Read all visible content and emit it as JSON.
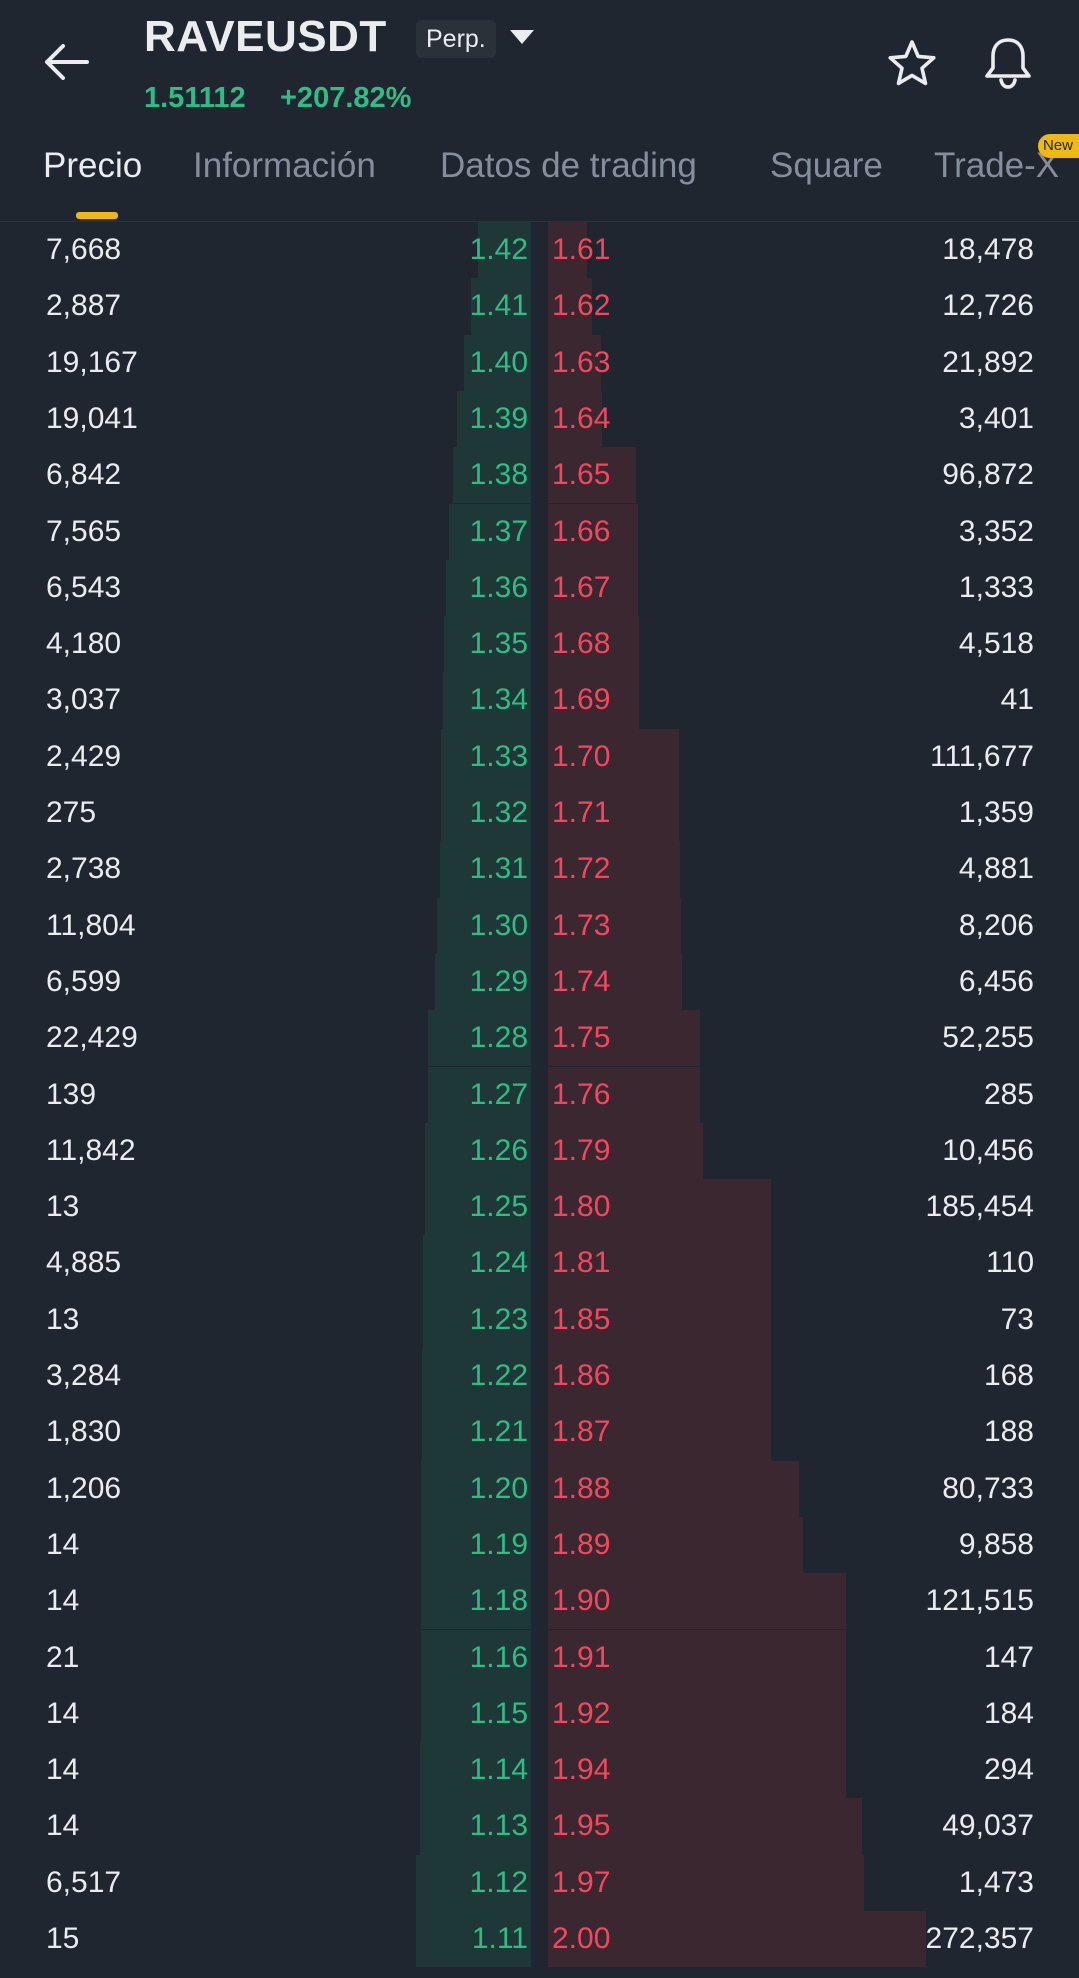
{
  "header": {
    "symbol": "RAVEUSDT",
    "contract_type": "Perp.",
    "last_price": "1.51112",
    "change_pct": "+207.82%",
    "icons": [
      "back-arrow-icon",
      "caret-down-icon",
      "star-icon",
      "bell-icon"
    ]
  },
  "tabs": [
    {
      "label": "Precio",
      "active": true
    },
    {
      "label": "Información",
      "active": false
    },
    {
      "label": "Datos de trading",
      "active": false
    },
    {
      "label": "Square",
      "active": false
    },
    {
      "label": "Trade-X",
      "active": false,
      "badge": "New"
    }
  ],
  "colors": {
    "background": "#1f2630",
    "bid_green": "#2ebd85",
    "ask_red": "#f6465d",
    "bid_depth": "#1e3737",
    "ask_depth": "#3a2730",
    "accent_yellow": "#f0b90b"
  },
  "order_book": {
    "rows": [
      {
        "bid_qty": "7,668",
        "bid_price": "1.42",
        "ask_price": "1.61",
        "ask_qty": "18,478",
        "bid_depth": 0.049,
        "ask_depth": 0.036
      },
      {
        "bid_qty": "2,887",
        "bid_price": "1.41",
        "ask_price": "1.62",
        "ask_qty": "12,726",
        "bid_depth": 0.056,
        "ask_depth": 0.041
      },
      {
        "bid_qty": "19,167",
        "bid_price": "1.40",
        "ask_price": "1.63",
        "ask_qty": "21,892",
        "bid_depth": 0.062,
        "ask_depth": 0.049
      },
      {
        "bid_qty": "19,041",
        "bid_price": "1.39",
        "ask_price": "1.64",
        "ask_qty": "3,401",
        "bid_depth": 0.069,
        "ask_depth": 0.05
      },
      {
        "bid_qty": "6,842",
        "bid_price": "1.38",
        "ask_price": "1.65",
        "ask_qty": "96,872",
        "bid_depth": 0.072,
        "ask_depth": 0.082
      },
      {
        "bid_qty": "7,565",
        "bid_price": "1.37",
        "ask_price": "1.66",
        "ask_qty": "3,352",
        "bid_depth": 0.076,
        "ask_depth": 0.083
      },
      {
        "bid_qty": "6,543",
        "bid_price": "1.36",
        "ask_price": "1.67",
        "ask_qty": "1,333",
        "bid_depth": 0.079,
        "ask_depth": 0.083
      },
      {
        "bid_qty": "4,180",
        "bid_price": "1.35",
        "ask_price": "1.68",
        "ask_qty": "4,518",
        "bid_depth": 0.081,
        "ask_depth": 0.084
      },
      {
        "bid_qty": "3,037",
        "bid_price": "1.34",
        "ask_price": "1.69",
        "ask_qty": "41",
        "bid_depth": 0.082,
        "ask_depth": 0.084
      },
      {
        "bid_qty": "2,429",
        "bid_price": "1.33",
        "ask_price": "1.70",
        "ask_qty": "111,677",
        "bid_depth": 0.083,
        "ask_depth": 0.121
      },
      {
        "bid_qty": "275",
        "bid_price": "1.32",
        "ask_price": "1.71",
        "ask_qty": "1,359",
        "bid_depth": 0.083,
        "ask_depth": 0.121
      },
      {
        "bid_qty": "2,738",
        "bid_price": "1.31",
        "ask_price": "1.72",
        "ask_qty": "4,881",
        "bid_depth": 0.084,
        "ask_depth": 0.122
      },
      {
        "bid_qty": "11,804",
        "bid_price": "1.30",
        "ask_price": "1.73",
        "ask_qty": "8,206",
        "bid_depth": 0.087,
        "ask_depth": 0.123
      },
      {
        "bid_qty": "6,599",
        "bid_price": "1.29",
        "ask_price": "1.74",
        "ask_qty": "6,456",
        "bid_depth": 0.089,
        "ask_depth": 0.124
      },
      {
        "bid_qty": "22,429",
        "bid_price": "1.28",
        "ask_price": "1.75",
        "ask_qty": "52,255",
        "bid_depth": 0.095,
        "ask_depth": 0.141
      },
      {
        "bid_qty": "139",
        "bid_price": "1.27",
        "ask_price": "1.76",
        "ask_qty": "285",
        "bid_depth": 0.095,
        "ask_depth": 0.141
      },
      {
        "bid_qty": "11,842",
        "bid_price": "1.26",
        "ask_price": "1.79",
        "ask_qty": "10,456",
        "bid_depth": 0.098,
        "ask_depth": 0.144
      },
      {
        "bid_qty": "13",
        "bid_price": "1.25",
        "ask_price": "1.80",
        "ask_qty": "185,454",
        "bid_depth": 0.098,
        "ask_depth": 0.207
      },
      {
        "bid_qty": "4,885",
        "bid_price": "1.24",
        "ask_price": "1.81",
        "ask_qty": "110",
        "bid_depth": 0.1,
        "ask_depth": 0.207
      },
      {
        "bid_qty": "13",
        "bid_price": "1.23",
        "ask_price": "1.85",
        "ask_qty": "73",
        "bid_depth": 0.1,
        "ask_depth": 0.207
      },
      {
        "bid_qty": "3,284",
        "bid_price": "1.22",
        "ask_price": "1.86",
        "ask_qty": "168",
        "bid_depth": 0.101,
        "ask_depth": 0.207
      },
      {
        "bid_qty": "1,830",
        "bid_price": "1.21",
        "ask_price": "1.87",
        "ask_qty": "188",
        "bid_depth": 0.101,
        "ask_depth": 0.207
      },
      {
        "bid_qty": "1,206",
        "bid_price": "1.20",
        "ask_price": "1.88",
        "ask_qty": "80,733",
        "bid_depth": 0.102,
        "ask_depth": 0.233
      },
      {
        "bid_qty": "14",
        "bid_price": "1.19",
        "ask_price": "1.89",
        "ask_qty": "9,858",
        "bid_depth": 0.102,
        "ask_depth": 0.236
      },
      {
        "bid_qty": "14",
        "bid_price": "1.18",
        "ask_price": "1.90",
        "ask_qty": "121,515",
        "bid_depth": 0.102,
        "ask_depth": 0.276
      },
      {
        "bid_qty": "21",
        "bid_price": "1.16",
        "ask_price": "1.91",
        "ask_qty": "147",
        "bid_depth": 0.102,
        "ask_depth": 0.276
      },
      {
        "bid_qty": "14",
        "bid_price": "1.15",
        "ask_price": "1.92",
        "ask_qty": "184",
        "bid_depth": 0.102,
        "ask_depth": 0.276
      },
      {
        "bid_qty": "14",
        "bid_price": "1.14",
        "ask_price": "1.94",
        "ask_qty": "294",
        "bid_depth": 0.103,
        "ask_depth": 0.276
      },
      {
        "bid_qty": "14",
        "bid_price": "1.13",
        "ask_price": "1.95",
        "ask_qty": "49,037",
        "bid_depth": 0.103,
        "ask_depth": 0.291
      },
      {
        "bid_qty": "6,517",
        "bid_price": "1.12",
        "ask_price": "1.97",
        "ask_qty": "1,473",
        "bid_depth": 0.107,
        "ask_depth": 0.293
      },
      {
        "bid_qty": "15",
        "bid_price": "1.11",
        "ask_price": "2.00",
        "ask_qty": "272,357",
        "bid_depth": 0.107,
        "ask_depth": 0.35
      }
    ]
  }
}
